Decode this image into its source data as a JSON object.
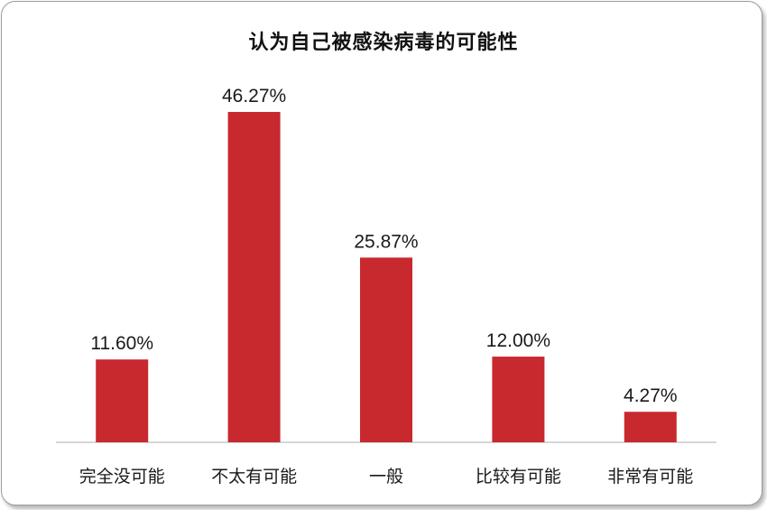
{
  "chart_data": {
    "type": "bar",
    "title": "认为自己被感染病毒的可能性",
    "categories": [
      "完全没可能",
      "不太有可能",
      "一般",
      "比较有可能",
      "非常有可能"
    ],
    "values": [
      11.6,
      46.27,
      25.87,
      12.0,
      4.27
    ],
    "data_labels": [
      "11.60%",
      "46.27%",
      "25.87%",
      "12.00%",
      "4.27%"
    ],
    "bar_color": "#c8292f",
    "ylim": [
      0,
      50
    ],
    "grid": false,
    "legend": "none"
  }
}
